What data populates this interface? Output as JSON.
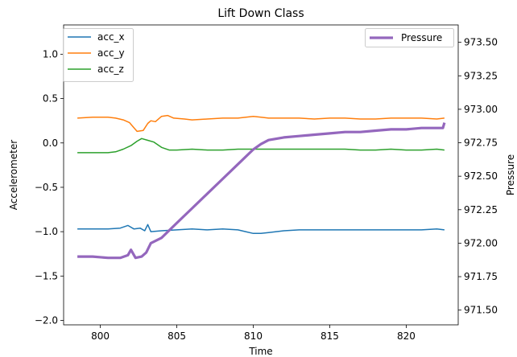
{
  "chart_data": {
    "type": "line",
    "title": "Lift Down Class",
    "xlabel": "Time",
    "ylabel_left": "Accelerometer",
    "ylabel_right": "Pressure",
    "xlim": [
      797.6,
      823.4
    ],
    "ylim_left": [
      -2.05,
      1.33
    ],
    "ylim_right": [
      971.39,
      973.63
    ],
    "x_ticks": [
      800,
      805,
      810,
      815,
      820
    ],
    "x_tick_labels": [
      "800",
      "805",
      "810",
      "815",
      "820"
    ],
    "y_left_ticks": [
      1.0,
      0.5,
      0.0,
      -0.5,
      -1.0,
      -1.5,
      -2.0
    ],
    "y_left_tick_labels": [
      "1.0",
      "0.5",
      "0.0",
      "−0.5",
      "−1.0",
      "−1.5",
      "−2.0"
    ],
    "y_right_ticks": [
      973.5,
      973.25,
      973.0,
      972.75,
      972.5,
      972.25,
      972.0,
      971.75,
      971.5
    ],
    "y_right_tick_labels": [
      "973.50",
      "973.25",
      "973.00",
      "972.75",
      "972.50",
      "972.25",
      "972.00",
      "971.75",
      "971.50"
    ],
    "legend_left": {
      "placement": "upper left",
      "entries": [
        "acc_x",
        "acc_y",
        "acc_z"
      ]
    },
    "legend_right": {
      "placement": "upper right",
      "entries": [
        "Pressure"
      ]
    },
    "grid": false,
    "series": [
      {
        "name": "acc_x",
        "axis": "left",
        "color": "#1f77b4",
        "points": [
          [
            798.5,
            -0.97
          ],
          [
            799.5,
            -0.97
          ],
          [
            800.5,
            -0.97
          ],
          [
            801.3,
            -0.96
          ],
          [
            801.8,
            -0.93
          ],
          [
            802.2,
            -0.97
          ],
          [
            802.6,
            -0.96
          ],
          [
            802.9,
            -0.99
          ],
          [
            803.1,
            -0.92
          ],
          [
            803.3,
            -1.0
          ],
          [
            804,
            -0.99
          ],
          [
            805,
            -0.98
          ],
          [
            806,
            -0.97
          ],
          [
            807,
            -0.98
          ],
          [
            808,
            -0.97
          ],
          [
            809,
            -0.98
          ],
          [
            809.5,
            -1.0
          ],
          [
            810,
            -1.02
          ],
          [
            810.5,
            -1.02
          ],
          [
            811,
            -1.01
          ],
          [
            812,
            -0.99
          ],
          [
            813,
            -0.98
          ],
          [
            814,
            -0.98
          ],
          [
            815,
            -0.98
          ],
          [
            816,
            -0.98
          ],
          [
            817,
            -0.98
          ],
          [
            818,
            -0.98
          ],
          [
            819,
            -0.98
          ],
          [
            820,
            -0.98
          ],
          [
            821,
            -0.98
          ],
          [
            822,
            -0.97
          ],
          [
            822.5,
            -0.98
          ]
        ]
      },
      {
        "name": "acc_y",
        "axis": "left",
        "color": "#ff7f0e",
        "points": [
          [
            798.5,
            0.28
          ],
          [
            799.5,
            0.29
          ],
          [
            800.5,
            0.29
          ],
          [
            801,
            0.28
          ],
          [
            801.5,
            0.26
          ],
          [
            801.9,
            0.23
          ],
          [
            802.2,
            0.17
          ],
          [
            802.4,
            0.13
          ],
          [
            802.8,
            0.14
          ],
          [
            803.1,
            0.22
          ],
          [
            803.3,
            0.25
          ],
          [
            803.6,
            0.24
          ],
          [
            804,
            0.3
          ],
          [
            804.4,
            0.31
          ],
          [
            804.8,
            0.28
          ],
          [
            805.5,
            0.27
          ],
          [
            806,
            0.26
          ],
          [
            807,
            0.27
          ],
          [
            808,
            0.28
          ],
          [
            809,
            0.28
          ],
          [
            810,
            0.3
          ],
          [
            810.5,
            0.29
          ],
          [
            811,
            0.28
          ],
          [
            812,
            0.28
          ],
          [
            813,
            0.28
          ],
          [
            814,
            0.27
          ],
          [
            815,
            0.28
          ],
          [
            816,
            0.28
          ],
          [
            817,
            0.27
          ],
          [
            818,
            0.27
          ],
          [
            819,
            0.28
          ],
          [
            820,
            0.28
          ],
          [
            821,
            0.28
          ],
          [
            822,
            0.27
          ],
          [
            822.5,
            0.28
          ]
        ]
      },
      {
        "name": "acc_z",
        "axis": "left",
        "color": "#2ca02c",
        "points": [
          [
            798.5,
            -0.11
          ],
          [
            799.5,
            -0.11
          ],
          [
            800.5,
            -0.11
          ],
          [
            801,
            -0.1
          ],
          [
            801.5,
            -0.07
          ],
          [
            802,
            -0.03
          ],
          [
            802.4,
            0.02
          ],
          [
            802.7,
            0.05
          ],
          [
            803.1,
            0.03
          ],
          [
            803.5,
            0.01
          ],
          [
            804,
            -0.05
          ],
          [
            804.5,
            -0.08
          ],
          [
            805,
            -0.08
          ],
          [
            806,
            -0.07
          ],
          [
            807,
            -0.08
          ],
          [
            808,
            -0.08
          ],
          [
            809,
            -0.07
          ],
          [
            810,
            -0.07
          ],
          [
            811,
            -0.07
          ],
          [
            812,
            -0.07
          ],
          [
            813,
            -0.07
          ],
          [
            814,
            -0.07
          ],
          [
            815,
            -0.07
          ],
          [
            816,
            -0.07
          ],
          [
            817,
            -0.08
          ],
          [
            818,
            -0.08
          ],
          [
            819,
            -0.07
          ],
          [
            820,
            -0.08
          ],
          [
            821,
            -0.08
          ],
          [
            822,
            -0.07
          ],
          [
            822.5,
            -0.08
          ]
        ]
      },
      {
        "name": "Pressure",
        "axis": "right",
        "color": "#9467bd",
        "points": [
          [
            798.5,
            971.9
          ],
          [
            799.5,
            971.9
          ],
          [
            800.5,
            971.89
          ],
          [
            801.3,
            971.89
          ],
          [
            801.8,
            971.91
          ],
          [
            802,
            971.95
          ],
          [
            802.3,
            971.89
          ],
          [
            802.7,
            971.9
          ],
          [
            803,
            971.93
          ],
          [
            803.3,
            972.0
          ],
          [
            804,
            972.04
          ],
          [
            805,
            972.15
          ],
          [
            806,
            972.26
          ],
          [
            807,
            972.37
          ],
          [
            808,
            972.48
          ],
          [
            809,
            972.59
          ],
          [
            810,
            972.7
          ],
          [
            810.5,
            972.74
          ],
          [
            811,
            972.77
          ],
          [
            812,
            972.79
          ],
          [
            813,
            972.8
          ],
          [
            814,
            972.81
          ],
          [
            815,
            972.82
          ],
          [
            816,
            972.83
          ],
          [
            817,
            972.83
          ],
          [
            818,
            972.84
          ],
          [
            819,
            972.85
          ],
          [
            820,
            972.85
          ],
          [
            821,
            972.86
          ],
          [
            822,
            972.86
          ],
          [
            822.4,
            972.86
          ],
          [
            822.5,
            972.9
          ]
        ]
      }
    ]
  }
}
